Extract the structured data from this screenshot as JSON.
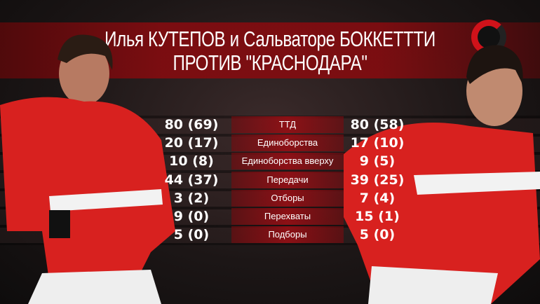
{
  "title": {
    "line1": "Илья КУТЕПОВ и Сальваторе БОККЕТТТИ",
    "line2": "ПРОТИВ  \"КРАСНОДАРА\""
  },
  "colors": {
    "accent": "#c0131b",
    "background": "#141212",
    "text": "#ffffff"
  },
  "logo": {
    "icon": "championat-logo"
  },
  "stats": [
    {
      "label": "ТТД",
      "left": "80 (69)",
      "right": "80 (58)"
    },
    {
      "label": "Единоборства",
      "left": "20 (17)",
      "right": "17 (10)"
    },
    {
      "label": "Единоборства вверху",
      "left": "10 (8)",
      "right": "9 (5)"
    },
    {
      "label": "Передачи",
      "left": "44 (37)",
      "right": "39 (25)"
    },
    {
      "label": "Отборы",
      "left": "3 (2)",
      "right": "7 (4)"
    },
    {
      "label": "Перехваты",
      "left": "9 (0)",
      "right": "15 (1)"
    },
    {
      "label": "Подборы",
      "left": "5 (0)",
      "right": "5 (0)"
    }
  ]
}
